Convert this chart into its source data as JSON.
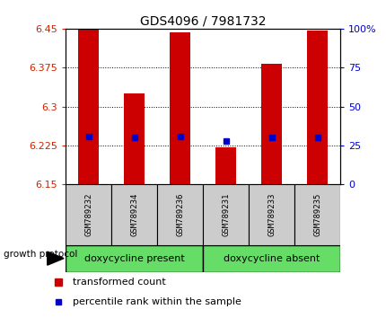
{
  "title": "GDS4096 / 7981732",
  "samples": [
    "GSM789232",
    "GSM789234",
    "GSM789236",
    "GSM789231",
    "GSM789233",
    "GSM789235"
  ],
  "ylim": [
    6.15,
    6.45
  ],
  "yticks": [
    6.15,
    6.225,
    6.3,
    6.375,
    6.45
  ],
  "ytick_labels": [
    "6.15",
    "6.225",
    "6.3",
    "6.375",
    "6.45"
  ],
  "right_yticks": [
    0,
    25,
    50,
    75,
    100
  ],
  "right_ytick_labels": [
    "0",
    "25",
    "50",
    "75",
    "100%"
  ],
  "bar_base": 6.15,
  "bar_tops": [
    6.448,
    6.325,
    6.443,
    6.222,
    6.383,
    6.447
  ],
  "percentile_values": [
    6.243,
    6.24,
    6.243,
    6.233,
    6.241,
    6.241
  ],
  "bar_color": "#cc0000",
  "percentile_color": "#0000cc",
  "group1_label": "doxycycline present",
  "group2_label": "doxycycline absent",
  "group1_indices": [
    0,
    1,
    2
  ],
  "group2_indices": [
    3,
    4,
    5
  ],
  "group_color": "#66dd66",
  "protocol_label": "growth protocol",
  "legend_bar_label": "transformed count",
  "legend_pct_label": "percentile rank within the sample",
  "left_tick_color": "#cc2200",
  "right_tick_color": "#0000cc",
  "bar_width": 0.45,
  "grid_color": "#000000",
  "bg_color": "#ffffff"
}
